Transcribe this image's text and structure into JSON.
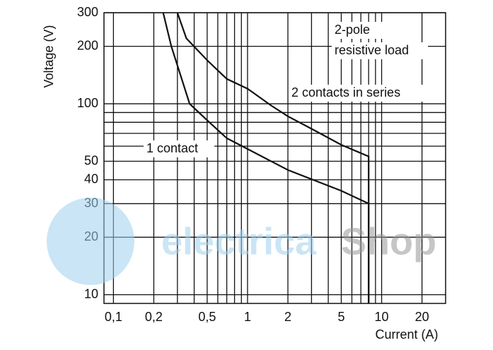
{
  "chart_data": {
    "type": "line",
    "xlabel": "Current (A)",
    "ylabel": "Voltage (V)",
    "log_x": true,
    "log_y": true,
    "grid": true,
    "color": "#111111",
    "xlim": [
      0.085,
      30
    ],
    "ylim": [
      9,
      300
    ],
    "xticks": [
      {
        "value": 0.1,
        "label": "0,1"
      },
      {
        "value": 0.2,
        "label": "0,2"
      },
      {
        "value": 0.5,
        "label": "0,5"
      },
      1,
      2,
      5,
      10,
      20
    ],
    "xminor": [
      0.3,
      0.4,
      0.6,
      0.7,
      0.8,
      0.9,
      3,
      4,
      6,
      7,
      8,
      9
    ],
    "yticks": [
      10,
      20,
      30,
      40,
      50,
      100,
      200,
      300
    ],
    "yminor": [
      60,
      70,
      80,
      90
    ],
    "annotations": [
      "2-pole",
      "resistive load"
    ],
    "watermark": [
      "electrica",
      "Shop"
    ],
    "series": [
      {
        "name": "1 contact",
        "x": [
          0.235,
          0.27,
          0.37,
          0.5,
          0.7,
          1,
          2,
          5,
          8,
          8
        ],
        "values": [
          300,
          200,
          100,
          82,
          66,
          58,
          45,
          35,
          30,
          9
        ]
      },
      {
        "name": "2 contacts in series",
        "x": [
          0.3,
          0.35,
          0.5,
          0.7,
          1,
          1.5,
          2,
          3,
          5,
          8,
          8
        ],
        "values": [
          300,
          220,
          169,
          135,
          120,
          98,
          86,
          74,
          61,
          53,
          9
        ]
      }
    ]
  }
}
